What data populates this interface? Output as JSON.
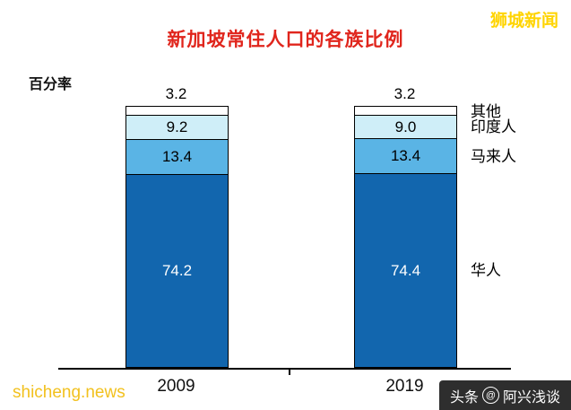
{
  "header": {
    "site_name_top": "狮城新闻"
  },
  "footer": {
    "site_url": "shicheng.news",
    "badge_prefix": "头条",
    "badge_handle": "阿兴浅谈"
  },
  "chart_data": {
    "type": "bar",
    "subtype": "stacked",
    "title": "新加坡常住人口的各族比例",
    "ylabel": "百分率",
    "categories": [
      "2009",
      "2019"
    ],
    "series": [
      {
        "name": "华人",
        "values": [
          74.2,
          74.4
        ],
        "color": "#1266ae",
        "label_color": "#ffffff",
        "label_outside": false
      },
      {
        "name": "马来人",
        "values": [
          13.4,
          13.4
        ],
        "color": "#5ab4e5",
        "label_color": "#000000",
        "label_outside": false
      },
      {
        "name": "印度人",
        "values": [
          9.2,
          9.0
        ],
        "color": "#cfeef8",
        "label_color": "#000000",
        "label_outside": false
      },
      {
        "name": "其他",
        "values": [
          3.2,
          3.2
        ],
        "color": "#ffffff",
        "label_color": "#000000",
        "label_outside": true
      }
    ],
    "ylim": [
      0,
      100
    ],
    "grid": false,
    "legend_position": "right",
    "colors": {
      "title": "#e0251c",
      "watermark_gold": "#ffd400"
    }
  }
}
